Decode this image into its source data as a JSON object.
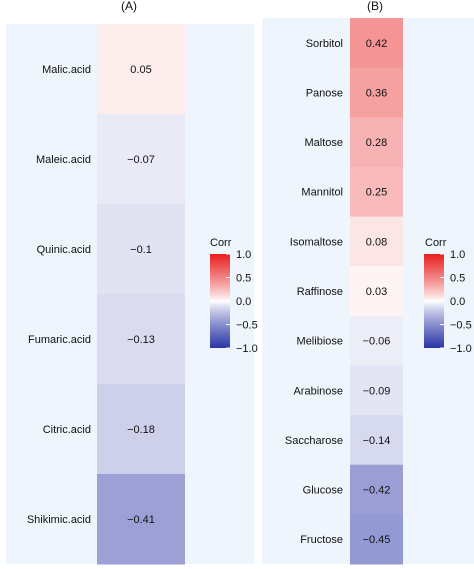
{
  "colorbar": {
    "title": "Corr",
    "ticks": [
      1.0,
      0.5,
      0.0,
      -0.5,
      -1.0
    ],
    "tick_labels": [
      "1.0",
      "0.5",
      "0.0",
      "−0.5",
      "−1.0"
    ],
    "colors": {
      "positive": "#e8201f",
      "zero": "#ffffff",
      "negative": "#2b35a6"
    }
  },
  "chart_data": [
    {
      "type": "heatmap",
      "panel_label": "(A)",
      "value_range": [
        -1,
        1
      ],
      "categories": [
        "Malic.acid",
        "Maleic.acid",
        "Quinic.acid",
        "Fumaric.acid",
        "Citric.acid",
        "Shikimic.acid"
      ],
      "values": [
        0.05,
        -0.07,
        -0.1,
        -0.13,
        -0.18,
        -0.41
      ],
      "value_labels": [
        "0.05",
        "−0.07",
        "−0.1",
        "−0.13",
        "−0.18",
        "−0.41"
      ]
    },
    {
      "type": "heatmap",
      "panel_label": "(B)",
      "value_range": [
        -1,
        1
      ],
      "categories": [
        "Sorbitol",
        "Panose",
        "Maltose",
        "Mannitol",
        "Isomaltose",
        "Raffinose",
        "Melibiose",
        "Arabinose",
        "Saccharose",
        "Glucose",
        "Fructose"
      ],
      "values": [
        0.42,
        0.36,
        0.28,
        0.25,
        0.08,
        0.03,
        -0.06,
        -0.09,
        -0.14,
        -0.42,
        -0.45
      ],
      "value_labels": [
        "0.42",
        "0.36",
        "0.28",
        "0.25",
        "0.08",
        "0.03",
        "−0.06",
        "−0.09",
        "−0.14",
        "−0.42",
        "−0.45"
      ]
    }
  ]
}
